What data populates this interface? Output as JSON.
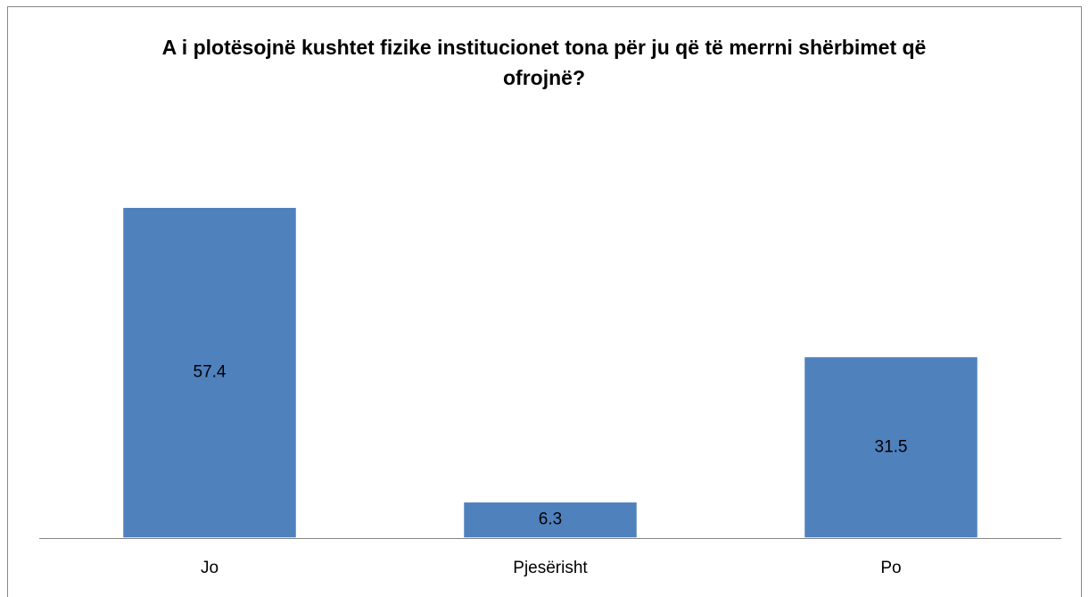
{
  "chart_data": {
    "type": "bar",
    "title": "A i plotësojnë kushtet fizike institucionet tona për ju që të merrni shërbimet që ofrojnë?",
    "categories": [
      "Jo",
      "Pjesërisht",
      "Po"
    ],
    "values": [
      57.4,
      6.3,
      31.5
    ],
    "color": "#4f81bd"
  }
}
